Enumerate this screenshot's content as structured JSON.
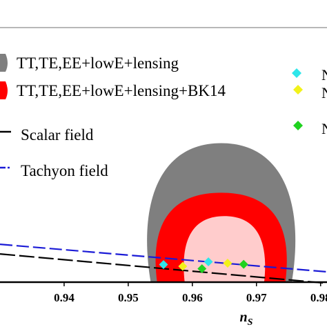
{
  "chart_data": {
    "type": "scatter",
    "title": "",
    "xlabel": "n",
    "xlabel_sub": "S",
    "ylabel": "",
    "xlim": [
      0.93,
      0.981
    ],
    "ylim": [
      0.0,
      0.185
    ],
    "grid": false,
    "x_ticks": [
      {
        "value": 0.94,
        "label": "0.94"
      },
      {
        "value": 0.95,
        "label": "0.95"
      },
      {
        "value": 0.96,
        "label": "0.96"
      },
      {
        "value": 0.97,
        "label": "0.97"
      },
      {
        "value": 0.98,
        "label": "0.98"
      }
    ],
    "legend_left": [
      {
        "label": "TT,TE,EE+lowE+lensing",
        "swatch": "gray-region"
      },
      {
        "label": "TT,TE,EE+lowE+lensing+BK14",
        "swatch": "red-region"
      },
      {
        "label": "Scalar field",
        "swatch": "black-dash"
      },
      {
        "label": "Tachyon field",
        "swatch": "blue-dash"
      }
    ],
    "legend_left_placement": "top-left",
    "legend_right_markers": [
      {
        "label": "N",
        "color": "#2ee6ea"
      },
      {
        "label": "N",
        "color": "#f2f21a"
      },
      {
        "label": "N",
        "color": "#1fd21f"
      }
    ],
    "legend_right_placement": "top-right",
    "regions": [
      {
        "name": "TT,TE,EE+lowE+lensing",
        "level": "95%",
        "color": "#7f7f7f",
        "center": [
          0.9649,
          0.043
        ],
        "x_range": [
          0.9535,
          0.9755
        ],
        "y_top": 0.101
      },
      {
        "name": "TT,TE,EE+lowE+lensing",
        "level": "68%",
        "color": "#d4d4d4",
        "center": [
          0.9649,
          0.03
        ],
        "x_range": [
          0.9575,
          0.9725
        ],
        "y_top": 0.063
      },
      {
        "name": "TT,TE,EE+lowE+lensing+BK14",
        "level": "95%",
        "color": "#ff0000",
        "center": [
          0.9649,
          0.026
        ],
        "x_range": [
          0.9545,
          0.9745
        ],
        "y_top": 0.065
      },
      {
        "name": "TT,TE,EE+lowE+lensing+BK14",
        "level": "68%",
        "color": "#ffcccc",
        "center": [
          0.9649,
          0.02
        ],
        "x_range": [
          0.9588,
          0.9712
        ],
        "y_top": 0.048
      }
    ],
    "series": [
      {
        "name": "Scalar field",
        "style": "dashed",
        "color": "#000000",
        "x": [
          0.93,
          0.981
        ],
        "y": [
          0.0205,
          -0.0008
        ]
      },
      {
        "name": "Tachyon field",
        "style": "dashed",
        "color": "#1a1ad6",
        "x": [
          0.93,
          0.981
        ],
        "y": [
          0.0275,
          0.0075
        ]
      }
    ],
    "points": [
      {
        "x": 0.9555,
        "y": 0.0128,
        "color": "#2ee6ea"
      },
      {
        "x": 0.9585,
        "y": 0.0115,
        "color": "#f2f21a"
      },
      {
        "x": 0.9615,
        "y": 0.0098,
        "color": "#1fd21f"
      },
      {
        "x": 0.9625,
        "y": 0.0148,
        "color": "#2ee6ea"
      },
      {
        "x": 0.9655,
        "y": 0.0138,
        "color": "#f2f21a"
      },
      {
        "x": 0.968,
        "y": 0.013,
        "color": "#1fd21f"
      }
    ]
  },
  "colors": {
    "axis": "#000000",
    "frame": "#6f6f6f"
  }
}
